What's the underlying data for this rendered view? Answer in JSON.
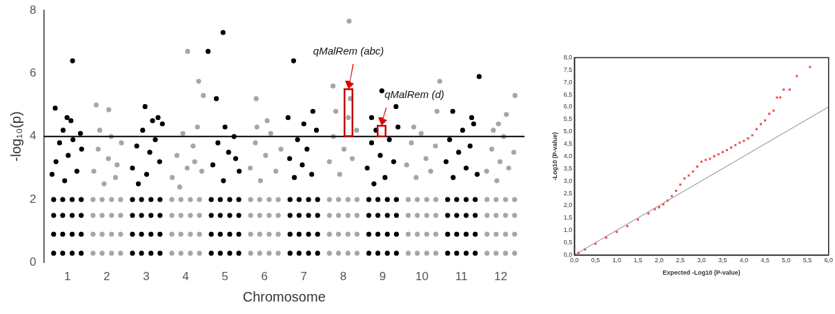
{
  "chart_data": [
    {
      "type": "scatter",
      "xlabel": "Chromosome",
      "ylabel": "-log₁₀(p)",
      "xlim": [
        0.4,
        12.6
      ],
      "ylim": [
        0,
        8
      ],
      "yticks": [
        0,
        2,
        4,
        6,
        8
      ],
      "xticks": [
        1,
        2,
        3,
        4,
        5,
        6,
        7,
        8,
        9,
        10,
        11,
        12
      ],
      "marker": "circle",
      "grid": false,
      "legend": false,
      "ref_lines": [
        {
          "axis": "y",
          "value": 4,
          "color": "#000000"
        }
      ],
      "annotations": [
        "qMalRem (abc)",
        "qMalRem (d)"
      ],
      "series": [
        {
          "color": "#000000",
          "x": [
            0.65,
            0.88,
            1.12,
            1.35,
            0.65,
            0.88,
            1.12,
            1.35,
            0.65,
            0.88,
            1.12,
            1.35,
            0.65,
            0.88,
            1.12,
            1.35,
            0.71,
            0.8,
            0.93,
            1.02,
            1.14,
            1.24,
            1.36,
            0.61,
            1.33,
            0.89,
            0.69,
            0.99,
            1.09,
            1.13
          ],
          "values": [
            0.3,
            0.3,
            0.3,
            0.3,
            0.9,
            0.9,
            0.9,
            0.9,
            1.5,
            1.5,
            1.5,
            1.5,
            2.0,
            2.0,
            2.0,
            2.0,
            3.2,
            3.8,
            2.6,
            3.4,
            3.9,
            2.9,
            3.6,
            2.8,
            4.1,
            4.2,
            4.9,
            4.6,
            4.5,
            6.4
          ]
        },
        {
          "color": "#a6a6a6",
          "x": [
            1.65,
            1.88,
            2.12,
            2.35,
            1.65,
            1.88,
            2.12,
            2.35,
            1.65,
            1.88,
            2.12,
            2.35,
            1.65,
            1.88,
            2.12,
            2.35,
            1.67,
            1.78,
            1.93,
            2.04,
            2.11,
            2.26,
            2.37,
            1.82,
            2.22,
            1.73,
            2.05
          ],
          "values": [
            0.3,
            0.3,
            0.3,
            0.3,
            0.9,
            0.9,
            0.9,
            0.9,
            1.5,
            1.5,
            1.5,
            1.5,
            2.0,
            2.0,
            2.0,
            2.0,
            2.9,
            3.6,
            2.5,
            3.3,
            4.0,
            3.1,
            3.8,
            4.2,
            2.7,
            5.0,
            4.85
          ]
        },
        {
          "color": "#000000",
          "x": [
            2.65,
            2.88,
            3.12,
            3.35,
            2.65,
            2.88,
            3.12,
            3.35,
            2.65,
            2.88,
            3.12,
            3.35,
            2.65,
            2.88,
            3.12,
            3.35,
            2.65,
            2.76,
            2.91,
            3.01,
            3.09,
            3.23,
            3.34,
            3.41,
            2.8,
            2.97,
            3.16,
            3.3
          ],
          "values": [
            0.3,
            0.3,
            0.3,
            0.3,
            0.9,
            0.9,
            0.9,
            0.9,
            1.5,
            1.5,
            1.5,
            1.5,
            2.0,
            2.0,
            2.0,
            2.0,
            3.0,
            3.7,
            4.2,
            2.8,
            3.5,
            3.9,
            3.2,
            4.4,
            2.5,
            4.95,
            4.5,
            4.6
          ]
        },
        {
          "color": "#a6a6a6",
          "x": [
            3.65,
            3.88,
            4.12,
            4.35,
            3.65,
            3.88,
            4.12,
            4.35,
            3.65,
            3.88,
            4.12,
            4.35,
            3.65,
            3.88,
            4.12,
            4.35,
            3.66,
            3.78,
            3.93,
            4.04,
            4.19,
            4.3,
            4.41,
            3.85,
            4.23,
            4.05,
            4.33,
            4.45
          ],
          "values": [
            0.3,
            0.3,
            0.3,
            0.3,
            0.9,
            0.9,
            0.9,
            0.9,
            1.5,
            1.5,
            1.5,
            1.5,
            2.0,
            2.0,
            2.0,
            2.0,
            2.7,
            3.4,
            4.1,
            3.0,
            3.7,
            4.3,
            2.9,
            2.4,
            3.2,
            6.7,
            5.75,
            5.3
          ]
        },
        {
          "color": "#000000",
          "x": [
            4.65,
            4.88,
            5.12,
            5.35,
            4.65,
            4.88,
            5.12,
            5.35,
            4.65,
            4.88,
            5.12,
            5.35,
            4.65,
            4.88,
            5.12,
            5.35,
            4.69,
            4.82,
            4.96,
            5.09,
            5.23,
            5.36,
            5.0,
            5.27,
            4.57,
            4.95,
            4.78
          ],
          "values": [
            0.3,
            0.3,
            0.3,
            0.3,
            0.9,
            0.9,
            0.9,
            0.9,
            1.5,
            1.5,
            1.5,
            1.5,
            2.0,
            2.0,
            2.0,
            2.0,
            3.1,
            3.8,
            2.6,
            3.5,
            4.0,
            2.9,
            4.3,
            3.3,
            6.7,
            7.3,
            5.2
          ]
        },
        {
          "color": "#a6a6a6",
          "x": [
            5.65,
            5.88,
            6.12,
            6.35,
            5.65,
            5.88,
            6.12,
            6.35,
            5.65,
            5.88,
            6.12,
            6.35,
            5.65,
            5.88,
            6.12,
            6.35,
            5.64,
            5.77,
            5.9,
            6.03,
            6.16,
            6.29,
            6.42,
            5.81,
            5.79,
            6.07
          ],
          "values": [
            0.3,
            0.3,
            0.3,
            0.3,
            0.9,
            0.9,
            0.9,
            0.9,
            1.5,
            1.5,
            1.5,
            1.5,
            2.0,
            2.0,
            2.0,
            2.0,
            3.0,
            3.8,
            2.6,
            3.4,
            4.1,
            2.9,
            3.6,
            4.3,
            5.2,
            4.5
          ]
        },
        {
          "color": "#000000",
          "x": [
            6.65,
            6.88,
            7.12,
            7.35,
            6.65,
            6.88,
            7.12,
            7.35,
            6.65,
            6.88,
            7.12,
            7.35,
            6.65,
            6.88,
            7.12,
            7.35,
            6.64,
            6.76,
            6.84,
            6.96,
            7.08,
            7.2,
            7.32,
            7.0,
            6.74,
            6.6,
            7.23
          ],
          "values": [
            0.3,
            0.3,
            0.3,
            0.3,
            0.9,
            0.9,
            0.9,
            0.9,
            1.5,
            1.5,
            1.5,
            1.5,
            2.0,
            2.0,
            2.0,
            2.0,
            3.3,
            2.7,
            3.9,
            3.1,
            3.6,
            2.8,
            4.2,
            4.4,
            6.4,
            4.6,
            4.8
          ]
        },
        {
          "color": "#a6a6a6",
          "x": [
            7.65,
            7.88,
            8.12,
            8.35,
            7.65,
            7.88,
            8.12,
            8.35,
            7.65,
            7.88,
            8.12,
            8.35,
            7.65,
            7.88,
            8.12,
            8.35,
            7.65,
            7.75,
            7.91,
            8.02,
            8.13,
            8.23,
            8.34,
            7.81,
            8.18,
            7.74,
            8.15
          ],
          "values": [
            0.3,
            0.3,
            0.3,
            0.3,
            0.9,
            0.9,
            0.9,
            0.9,
            1.5,
            1.5,
            1.5,
            1.5,
            2.0,
            2.0,
            2.0,
            2.0,
            3.2,
            4.0,
            2.8,
            3.6,
            4.6,
            3.3,
            4.2,
            4.8,
            5.2,
            5.6,
            7.66
          ]
        },
        {
          "color": "#000000",
          "x": [
            8.65,
            8.88,
            9.12,
            9.35,
            8.65,
            8.88,
            9.12,
            9.35,
            8.65,
            8.88,
            9.12,
            9.35,
            8.65,
            8.88,
            9.12,
            9.35,
            8.61,
            8.72,
            8.83,
            8.94,
            9.06,
            9.17,
            9.28,
            9.39,
            8.78,
            8.98,
            9.34,
            8.72
          ],
          "values": [
            0.3,
            0.3,
            0.3,
            0.3,
            0.9,
            0.9,
            0.9,
            0.9,
            1.5,
            1.5,
            1.5,
            1.5,
            2.0,
            2.0,
            2.0,
            2.0,
            3.0,
            3.8,
            4.2,
            3.4,
            2.7,
            3.9,
            3.2,
            4.3,
            2.5,
            5.45,
            4.95,
            4.6
          ]
        },
        {
          "color": "#a6a6a6",
          "x": [
            9.65,
            9.88,
            10.12,
            10.35,
            9.65,
            9.88,
            10.12,
            10.35,
            9.65,
            9.88,
            10.12,
            10.35,
            9.65,
            9.88,
            10.12,
            10.35,
            9.61,
            9.73,
            9.85,
            9.98,
            10.1,
            10.22,
            10.34,
            9.79,
            10.45,
            10.38
          ],
          "values": [
            0.3,
            0.3,
            0.3,
            0.3,
            0.9,
            0.9,
            0.9,
            0.9,
            1.5,
            1.5,
            1.5,
            1.5,
            2.0,
            2.0,
            2.0,
            2.0,
            3.1,
            3.8,
            2.7,
            4.1,
            3.3,
            2.9,
            3.7,
            4.3,
            5.75,
            4.8
          ]
        },
        {
          "color": "#000000",
          "x": [
            10.65,
            10.88,
            11.12,
            11.35,
            10.65,
            10.88,
            11.12,
            11.35,
            10.65,
            10.88,
            11.12,
            11.35,
            10.65,
            10.88,
            11.12,
            11.35,
            10.61,
            10.7,
            10.79,
            10.93,
            11.03,
            11.12,
            11.22,
            11.31,
            11.4,
            11.45,
            10.78,
            11.26
          ],
          "values": [
            0.3,
            0.3,
            0.3,
            0.3,
            0.9,
            0.9,
            0.9,
            0.9,
            1.5,
            1.5,
            1.5,
            1.5,
            2.0,
            2.0,
            2.0,
            2.0,
            3.2,
            3.9,
            2.7,
            3.5,
            4.2,
            3.0,
            3.7,
            4.4,
            2.8,
            5.9,
            4.8,
            4.6
          ]
        },
        {
          "color": "#a6a6a6",
          "x": [
            11.65,
            11.88,
            12.12,
            12.35,
            11.65,
            11.88,
            12.12,
            12.35,
            11.65,
            11.88,
            12.12,
            12.35,
            11.65,
            11.88,
            12.12,
            12.35,
            11.64,
            11.77,
            11.9,
            11.98,
            12.07,
            12.2,
            12.33,
            11.81,
            12.36,
            12.14,
            11.94
          ],
          "values": [
            0.3,
            0.3,
            0.3,
            0.3,
            0.9,
            0.9,
            0.9,
            0.9,
            1.5,
            1.5,
            1.5,
            1.5,
            2.0,
            2.0,
            2.0,
            2.0,
            2.9,
            3.6,
            2.6,
            3.2,
            4.0,
            3.0,
            3.5,
            4.2,
            5.3,
            4.7,
            4.4
          ]
        }
      ]
    },
    {
      "type": "scatter",
      "xlabel": "Expected -Log10 (P-value)",
      "ylabel": "-Log10 (P-value)",
      "xlim": [
        0,
        6
      ],
      "ylim": [
        0,
        8
      ],
      "xticks": [
        {
          "value": 0,
          "label": "0,0"
        },
        {
          "value": 0.5,
          "label": "0,5"
        },
        {
          "value": 1,
          "label": "1,0"
        },
        {
          "value": 1.5,
          "label": "1,5"
        },
        {
          "value": 2,
          "label": "2,0"
        },
        {
          "value": 2.5,
          "label": "2,5"
        },
        {
          "value": 3,
          "label": "3,0"
        },
        {
          "value": 3.5,
          "label": "3,5"
        },
        {
          "value": 4,
          "label": "4,0"
        },
        {
          "value": 4.5,
          "label": "4,5"
        },
        {
          "value": 5,
          "label": "5,0"
        },
        {
          "value": 5.5,
          "label": "5,5"
        },
        {
          "value": 6,
          "label": "6,0"
        }
      ],
      "yticks": [
        {
          "value": 0,
          "label": "0,0"
        },
        {
          "value": 0.5,
          "label": "0,5"
        },
        {
          "value": 1,
          "label": "1,0"
        },
        {
          "value": 1.5,
          "label": "1,5"
        },
        {
          "value": 2,
          "label": "2,0"
        },
        {
          "value": 2.5,
          "label": "2,5"
        },
        {
          "value": 3,
          "label": "3,0"
        },
        {
          "value": 3.5,
          "label": "3,5"
        },
        {
          "value": 4,
          "label": "4,0"
        },
        {
          "value": 4.5,
          "label": "4,5"
        },
        {
          "value": 5,
          "label": "5,0"
        },
        {
          "value": 5.5,
          "label": "5,5"
        },
        {
          "value": 6,
          "label": "6,0"
        },
        {
          "value": 6.5,
          "label": "6,5"
        },
        {
          "value": 7,
          "label": "7,0"
        },
        {
          "value": 7.5,
          "label": "7,5"
        },
        {
          "value": 8,
          "label": "8,0"
        }
      ],
      "marker": "square",
      "grid": false,
      "legend": false,
      "series": [
        {
          "type": "line",
          "color": "#808080",
          "marker": "none",
          "x": [
            0,
            6
          ],
          "values": [
            0,
            6
          ]
        },
        {
          "color": "#f05050",
          "x": [
            0,
            0.1,
            0.25,
            0.5,
            0.75,
            1.0,
            1.25,
            1.5,
            1.75,
            1.9,
            2.0,
            2.1,
            2.2,
            2.3,
            2.4,
            2.5,
            2.6,
            2.7,
            2.8,
            2.9,
            3.0,
            3.1,
            3.2,
            3.3,
            3.4,
            3.5,
            3.6,
            3.7,
            3.8,
            3.9,
            4.0,
            4.1,
            4.2,
            4.3,
            4.4,
            4.5,
            4.6,
            4.7,
            4.78,
            4.86,
            4.94,
            5.08,
            5.25,
            5.56
          ],
          "values": [
            0,
            0.08,
            0.22,
            0.45,
            0.7,
            0.93,
            1.17,
            1.43,
            1.68,
            1.85,
            1.93,
            2.05,
            2.2,
            2.38,
            2.6,
            2.85,
            3.1,
            3.22,
            3.38,
            3.58,
            3.78,
            3.85,
            3.9,
            4.0,
            4.08,
            4.17,
            4.25,
            4.35,
            4.45,
            4.55,
            4.62,
            4.72,
            4.85,
            5.1,
            5.3,
            5.45,
            5.72,
            5.85,
            6.38,
            6.38,
            6.7,
            6.7,
            7.25,
            7.62
          ]
        }
      ]
    }
  ]
}
